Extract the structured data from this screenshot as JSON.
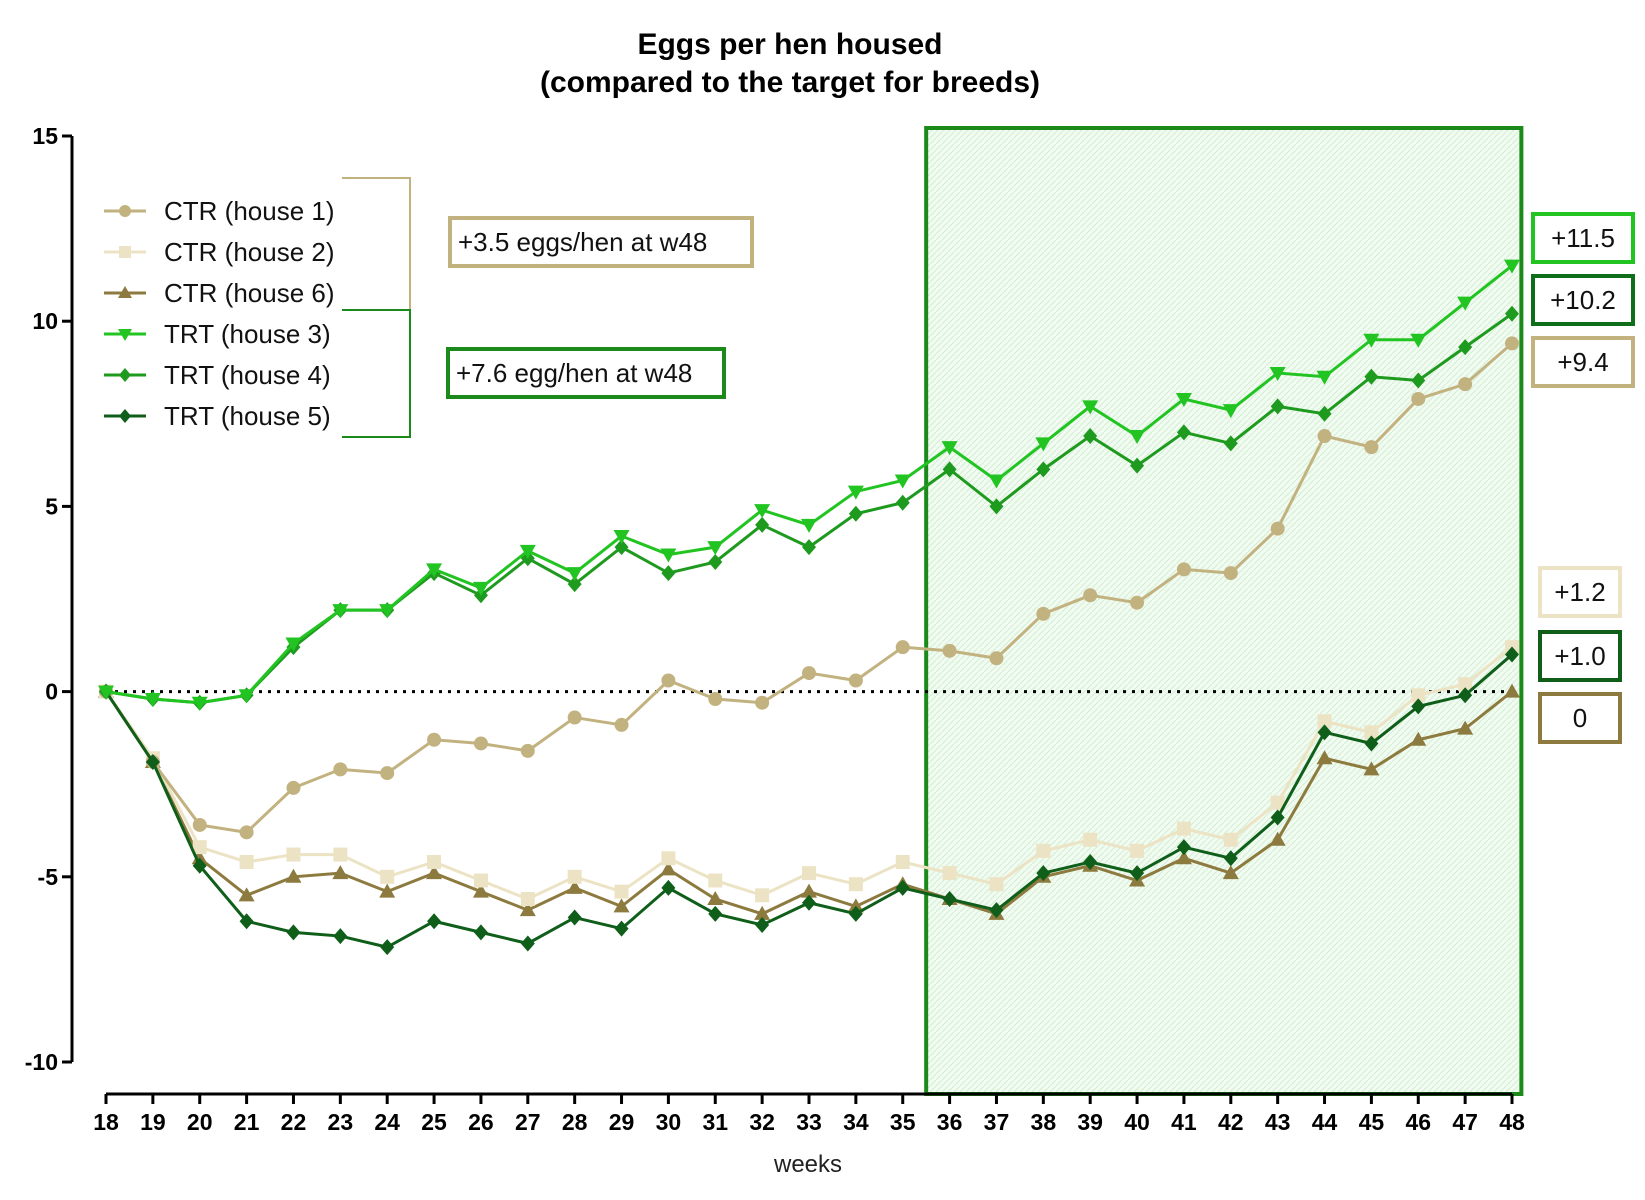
{
  "chart_data": {
    "type": "line",
    "title": "Eggs per hen housed",
    "subtitle": "(compared to the target for breeds)",
    "xlabel": "weeks",
    "ylabel": "",
    "x": [
      18,
      19,
      20,
      21,
      22,
      23,
      24,
      25,
      26,
      27,
      28,
      29,
      30,
      31,
      32,
      33,
      34,
      35,
      36,
      37,
      38,
      39,
      40,
      41,
      42,
      43,
      44,
      45,
      46,
      47,
      48
    ],
    "ylim": [
      -10,
      15
    ],
    "xlim": [
      18,
      48
    ],
    "yticks": [
      15,
      10,
      5,
      0,
      -5,
      -10
    ],
    "highlight_range": [
      35.5,
      48.2
    ],
    "zero_line": "dotted",
    "grid": false,
    "legend_position": "top-left",
    "series": [
      {
        "name": "CTR (house 1)",
        "color": "#c2b280",
        "marker": "circle",
        "values": [
          0,
          -1.9,
          -3.6,
          -3.8,
          -2.6,
          -2.1,
          -2.2,
          -1.3,
          -1.4,
          -1.6,
          -0.7,
          -0.9,
          0.3,
          -0.2,
          -0.3,
          0.5,
          0.3,
          1.2,
          1.1,
          0.9,
          2.1,
          2.6,
          2.4,
          3.3,
          3.2,
          4.4,
          6.9,
          6.6,
          7.9,
          8.3,
          9.4
        ]
      },
      {
        "name": "CTR (house 2)",
        "color": "#ece3c4",
        "marker": "square",
        "values": [
          0,
          -1.8,
          -4.2,
          -4.6,
          -4.4,
          -4.4,
          -5.0,
          -4.6,
          -5.1,
          -5.6,
          -5.0,
          -5.4,
          -4.5,
          -5.1,
          -5.5,
          -4.9,
          -5.2,
          -4.6,
          -4.9,
          -5.2,
          -4.3,
          -4.0,
          -4.3,
          -3.7,
          -4.0,
          -3.0,
          -0.8,
          -1.1,
          -0.1,
          0.2,
          1.2
        ]
      },
      {
        "name": "CTR (house 6)",
        "color": "#8c7a3e",
        "marker": "triangle-up",
        "values": [
          0,
          -1.9,
          -4.5,
          -5.5,
          -5.0,
          -4.9,
          -5.4,
          -4.9,
          -5.4,
          -5.9,
          -5.3,
          -5.8,
          -4.8,
          -5.6,
          -6.0,
          -5.4,
          -5.8,
          -5.2,
          -5.6,
          -6.0,
          -5.0,
          -4.7,
          -5.1,
          -4.5,
          -4.9,
          -4.0,
          -1.8,
          -2.1,
          -1.3,
          -1.0,
          0.0
        ]
      },
      {
        "name": "TRT (house 3)",
        "color": "#22c422",
        "marker": "triangle-down",
        "values": [
          0,
          -0.2,
          -0.3,
          -0.1,
          1.3,
          2.2,
          2.2,
          3.3,
          2.8,
          3.8,
          3.2,
          4.2,
          3.7,
          3.9,
          4.9,
          4.5,
          5.4,
          5.7,
          6.6,
          5.7,
          6.7,
          7.7,
          6.9,
          7.9,
          7.6,
          8.6,
          8.5,
          9.5,
          9.5,
          10.5,
          11.5
        ]
      },
      {
        "name": "TRT (house 4)",
        "color": "#1e9a1e",
        "marker": "diamond",
        "values": [
          0,
          -0.2,
          -0.3,
          -0.1,
          1.2,
          2.2,
          2.2,
          3.2,
          2.6,
          3.6,
          2.9,
          3.9,
          3.2,
          3.5,
          4.5,
          3.9,
          4.8,
          5.1,
          6.0,
          5.0,
          6.0,
          6.9,
          6.1,
          7.0,
          6.7,
          7.7,
          7.5,
          8.5,
          8.4,
          9.3,
          10.2
        ]
      },
      {
        "name": "TRT (house 5)",
        "color": "#0f5e1a",
        "marker": "diamond",
        "values": [
          0,
          -1.9,
          -4.7,
          -6.2,
          -6.5,
          -6.6,
          -6.9,
          -6.2,
          -6.5,
          -6.8,
          -6.1,
          -6.4,
          -5.3,
          -6.0,
          -6.3,
          -5.7,
          -6.0,
          -5.3,
          -5.6,
          -5.9,
          -4.9,
          -4.6,
          -4.9,
          -4.2,
          -4.5,
          -3.4,
          -1.1,
          -1.4,
          -0.4,
          -0.1,
          1.0
        ]
      }
    ],
    "annotations": [
      {
        "text": "+3.5 eggs/hen at w48",
        "color": "#c2b280"
      },
      {
        "text": "+7.6 egg/hen at w48",
        "color": "#1b8a1b"
      }
    ],
    "end_labels": [
      {
        "text": "+11.5",
        "color": "#22c422"
      },
      {
        "text": "+10.2",
        "color": "#0f6e1a"
      },
      {
        "text": "+9.4",
        "color": "#c2b280"
      },
      {
        "text": "+1.2",
        "color": "#ece3c4"
      },
      {
        "text": "+1.0",
        "color": "#0f5e1a"
      },
      {
        "text": "0",
        "color": "#8c7a3e"
      }
    ]
  }
}
